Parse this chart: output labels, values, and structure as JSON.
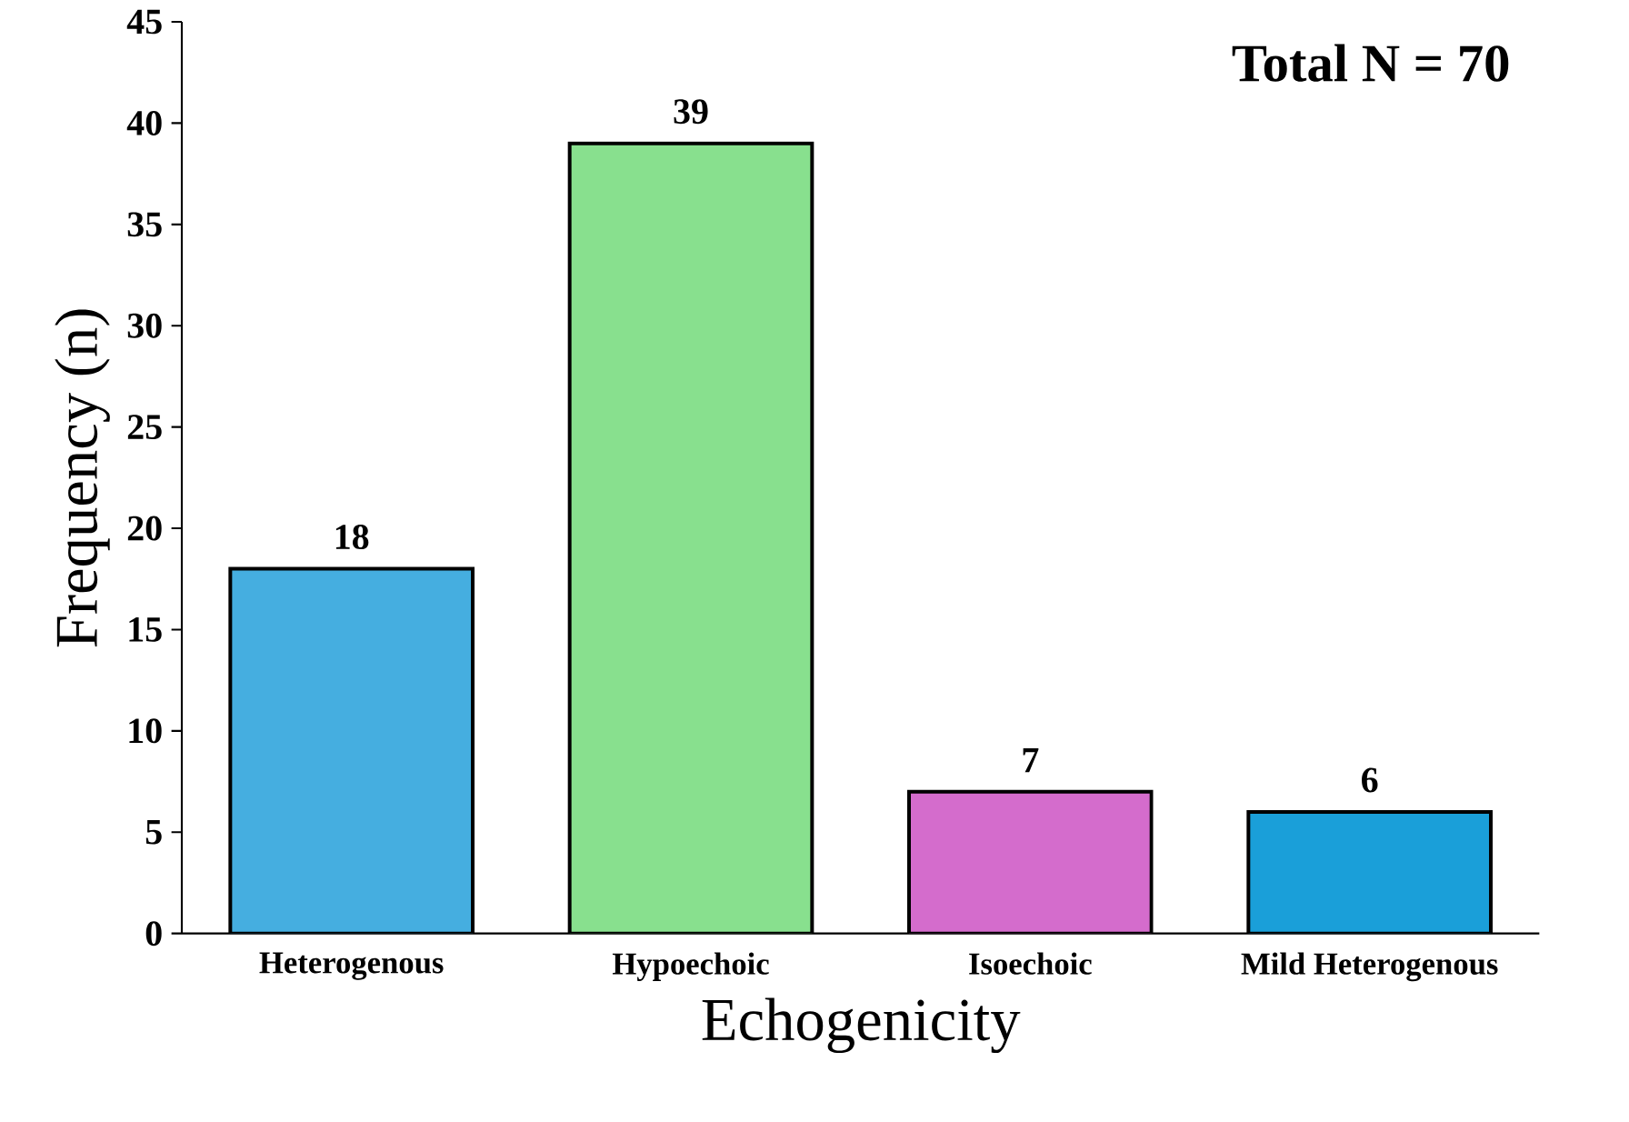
{
  "chart_data": {
    "type": "bar",
    "xlabel": "Echogenicity",
    "ylabel": "Frequency (n)",
    "categories": [
      "Heterogenous",
      "Hypoechoic",
      "Isoechoic",
      "Mild Heterogenous"
    ],
    "values": [
      18,
      39,
      7,
      6
    ],
    "colors": [
      "#45aee0",
      "#88e08e",
      "#d46ccc",
      "#1a9fd9"
    ],
    "ylim": [
      0,
      45
    ],
    "yticks": [
      0,
      5,
      10,
      15,
      20,
      25,
      30,
      35,
      40,
      45
    ],
    "data_labels": true,
    "annotations": [
      "Total N = 70"
    ]
  }
}
